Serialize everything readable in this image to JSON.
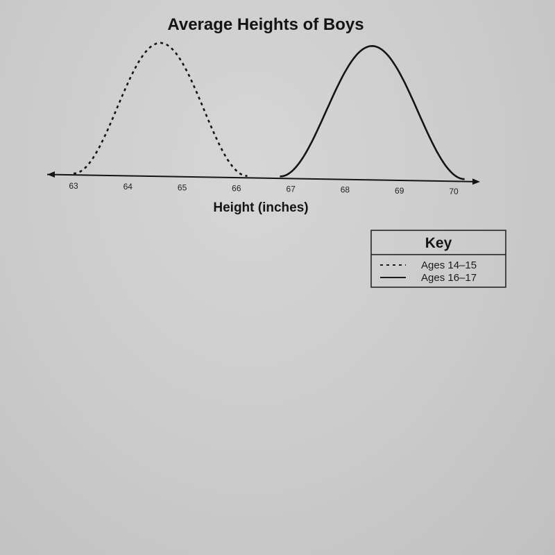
{
  "chart_data": {
    "type": "line",
    "title": "Average Heights of Boys",
    "xlabel": "Height (inches)",
    "ylabel": "",
    "xlim": [
      62.8,
      70.3
    ],
    "xticks": [
      63,
      64,
      65,
      66,
      67,
      68,
      69,
      70
    ],
    "grid": false,
    "legend": {
      "title": "Key",
      "placement": "bottom-right",
      "entries": [
        {
          "label": "Ages 14–15",
          "style": "dashed"
        },
        {
          "label": "Ages 16–17",
          "style": "solid"
        }
      ]
    },
    "series": [
      {
        "name": "Ages 14–15",
        "style": "dashed",
        "x_range": [
          63,
          66.2
        ],
        "peak": 64.6
      },
      {
        "name": "Ages 16–17",
        "style": "solid",
        "x_range": [
          66.8,
          70.2
        ],
        "peak": 68.5
      }
    ]
  },
  "colors": {
    "ink": "#141414",
    "background": "#cecece"
  }
}
